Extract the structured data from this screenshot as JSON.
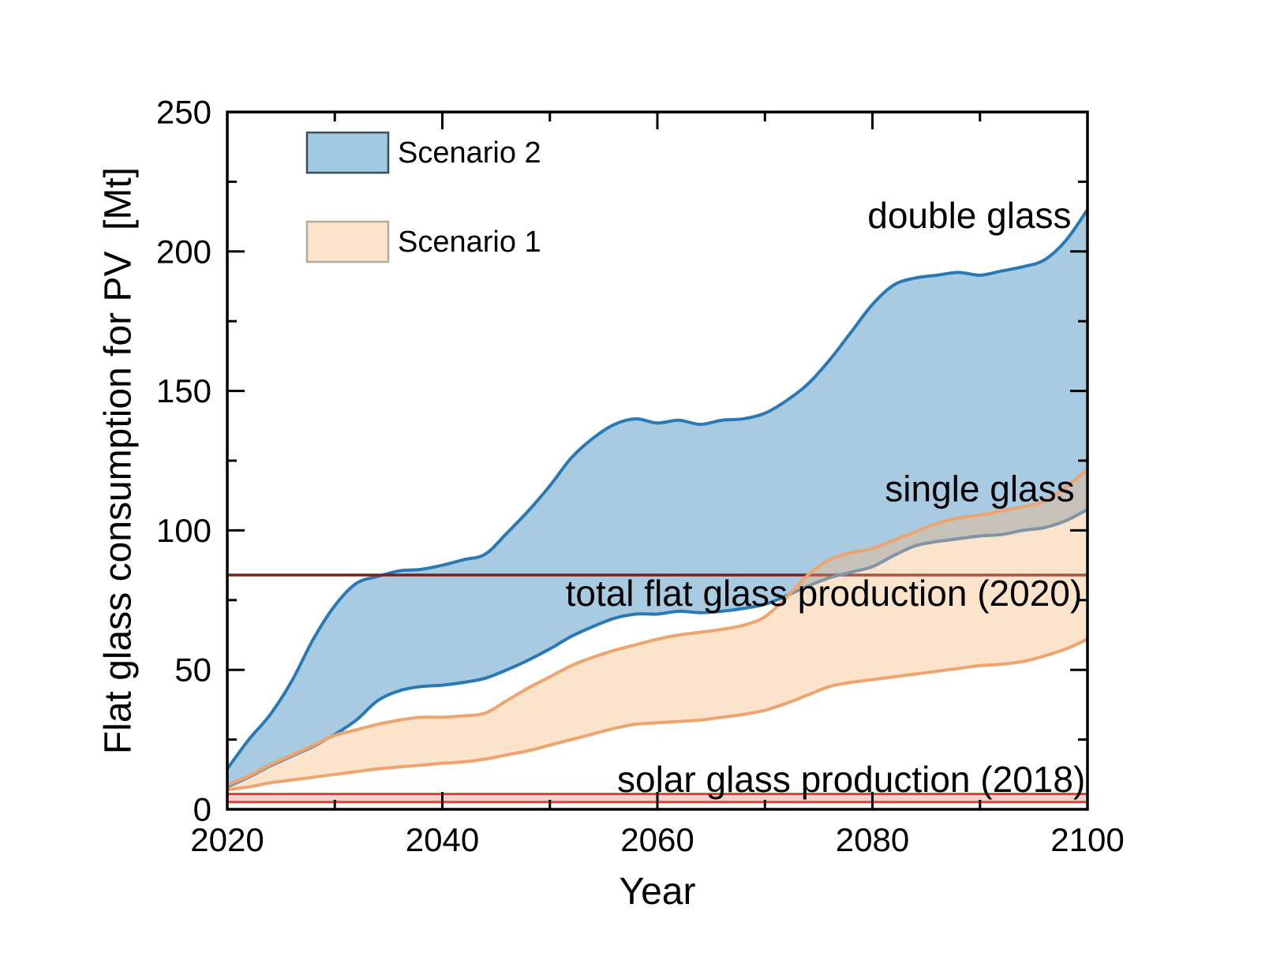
{
  "figure": {
    "background": "#ffffff",
    "x_axis": {
      "title": "Year",
      "min": 2020,
      "max": 2100,
      "major_ticks": [
        2020,
        2040,
        2060,
        2080,
        2100
      ],
      "minor_ticks": [
        2030,
        2050,
        2070,
        2090
      ]
    },
    "y_axis": {
      "title": "Flat glass consumption for PV  [Mt]",
      "min": 0,
      "max": 250,
      "major_ticks": [
        0,
        50,
        100,
        150,
        200,
        250
      ],
      "minor_ticks": [
        25,
        75,
        125,
        175,
        225
      ]
    },
    "legend": [
      {
        "label": "Scenario 2",
        "series_ref": "scenario2",
        "fill": "#a3cae3",
        "border": "#3d4c59"
      },
      {
        "label": "Scenario 1",
        "series_ref": "scenario1",
        "fill": "#fce4cc",
        "border": "#b3aba0"
      }
    ]
  },
  "chart_data": {
    "type": "area",
    "title": "",
    "xlabel": "Year",
    "ylabel": "Flat glass consumption for PV [Mt]",
    "xlim": [
      2020,
      2100
    ],
    "ylim": [
      0,
      250
    ],
    "grid": false,
    "legend_position": "top-left",
    "x": [
      2020,
      2022,
      2024,
      2026,
      2028,
      2030,
      2032,
      2034,
      2036,
      2038,
      2040,
      2042,
      2044,
      2046,
      2048,
      2050,
      2052,
      2054,
      2056,
      2058,
      2060,
      2062,
      2064,
      2066,
      2068,
      2070,
      2072,
      2074,
      2076,
      2078,
      2080,
      2082,
      2084,
      2086,
      2088,
      2090,
      2092,
      2094,
      2096,
      2098,
      2100
    ],
    "series": [
      {
        "id": "s2_upper",
        "name": "Scenario 2 double glass (upper bound)",
        "values": [
          14.5,
          25,
          34,
          46,
          61,
          73,
          81,
          83.5,
          85.5,
          86,
          87.5,
          89.5,
          91.5,
          99,
          107,
          116,
          126,
          133,
          138,
          140,
          138.5,
          139.5,
          138,
          139.5,
          140,
          142,
          146.5,
          152.5,
          161,
          171,
          181,
          188,
          190.5,
          191.5,
          192.5,
          191.5,
          193,
          194.5,
          197,
          204,
          215
        ]
      },
      {
        "id": "s2_lower",
        "name": "Scenario 2 single glass (lower bound)",
        "values": [
          8,
          11.5,
          15.5,
          19,
          22.5,
          26.8,
          32,
          39,
          42.5,
          44,
          44.5,
          45.5,
          47,
          50,
          53.5,
          57.5,
          62,
          65.5,
          68.5,
          70,
          70,
          71,
          70.5,
          71,
          72,
          73.5,
          76.5,
          80,
          83,
          85,
          87,
          91,
          94.5,
          96,
          97,
          98,
          98.5,
          100,
          101,
          103.5,
          107.5
        ]
      },
      {
        "id": "s1_upper",
        "name": "Scenario 1 double glass (upper bound)",
        "values": [
          8.8,
          12,
          16,
          19.5,
          23,
          26.5,
          28.5,
          30.5,
          32,
          33,
          33,
          33.5,
          34.5,
          39,
          43.5,
          47.5,
          51.5,
          54.5,
          57,
          59,
          61,
          62.5,
          63.5,
          64.5,
          66,
          69,
          76,
          84,
          89.5,
          92,
          93.5,
          96.5,
          99.5,
          102.5,
          104.5,
          105.5,
          107,
          108.5,
          110.5,
          115.5,
          122
        ]
      },
      {
        "id": "s1_lower",
        "name": "Scenario 1 single glass (lower bound)",
        "values": [
          7,
          8,
          9.5,
          10.5,
          11.5,
          12.5,
          13.5,
          14.5,
          15.2,
          15.8,
          16.5,
          17,
          18,
          19.5,
          21,
          23,
          25,
          27,
          29,
          30.5,
          31,
          31.5,
          32,
          33,
          34,
          35.5,
          38,
          41,
          44,
          45.5,
          46.5,
          47.5,
          48.5,
          49.5,
          50.5,
          51.5,
          52,
          53,
          55,
          57.5,
          61
        ]
      }
    ],
    "reference_line": {
      "label": "total flat glass production (2020)",
      "value": 84,
      "under_band_from_year": 2074
    },
    "reference_band": {
      "label": "solar glass production (2018)",
      "lower": 2.6,
      "upper": 5.5
    },
    "annotations": [
      {
        "id": "double-glass",
        "text": "double glass",
        "x": 2098.5,
        "y": 213,
        "anchor": "end"
      },
      {
        "id": "single-glass",
        "text": "single glass",
        "x": 2098.8,
        "y": 115,
        "anchor": "end"
      },
      {
        "id": "total-flat-glass-production-2020",
        "text": "total flat glass production (2020)",
        "x": 2099.5,
        "y": 77.5,
        "anchor": "end"
      },
      {
        "id": "solar-glass-production-2018",
        "text": "solar glass production (2018)",
        "x": 2099.8,
        "y": 10.7,
        "anchor": "end"
      }
    ]
  },
  "colors": {
    "scenario2_fill": "#a8cbe2",
    "scenario2_line": "#2979b6",
    "scenario1_fill": "#fbe3cc",
    "scenario1_line": "#efa36e",
    "overlap_fill": "#c6c2ba",
    "overlapped_scenario2_line": "#8095a6",
    "reference_2020_line": "#7d201c",
    "reference_2020_line_under_band": "#b05045",
    "reference_2018_line": "#e8392e",
    "reference_2018_fill": "#f9cfc9",
    "frame": "#000000",
    "text": "#000000"
  }
}
